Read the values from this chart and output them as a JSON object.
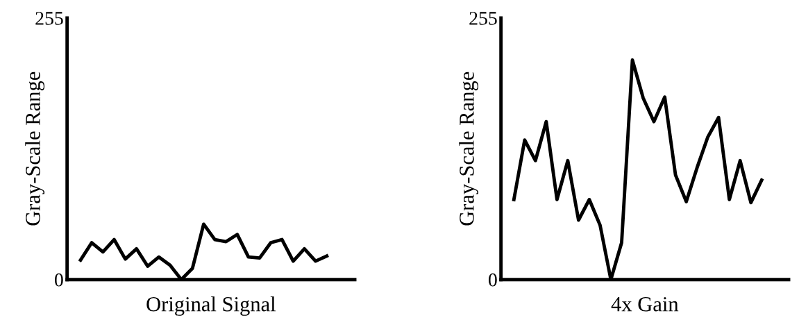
{
  "chart_data": [
    {
      "type": "line",
      "xlabel": "Original Signal",
      "ylabel": "Gray-Scale Range",
      "categories": [
        null,
        null,
        null,
        null,
        null,
        null,
        null,
        null,
        null,
        null,
        null,
        null,
        null,
        null,
        null,
        null,
        null,
        null,
        null,
        null,
        null,
        null,
        null
      ],
      "series": [
        {
          "color": "#000000",
          "values": [
            19,
            36,
            27,
            39,
            20,
            30,
            13,
            22,
            14,
            0,
            11,
            54,
            39,
            37,
            44,
            22,
            21,
            36,
            39,
            18,
            30,
            18,
            23
          ]
        }
      ],
      "ylim": [
        0,
        255
      ],
      "yticks": [
        0,
        255
      ],
      "grid": false,
      "marker": "none",
      "line_style": "solid"
    },
    {
      "type": "line",
      "xlabel": "4x Gain",
      "ylabel": "Gray-Scale Range",
      "categories": [
        null,
        null,
        null,
        null,
        null,
        null,
        null,
        null,
        null,
        null,
        null,
        null,
        null,
        null,
        null,
        null,
        null,
        null,
        null,
        null,
        null,
        null,
        null,
        null
      ],
      "series": [
        {
          "color": "#000000",
          "values": [
            78,
            136,
            116,
            154,
            78,
            116,
            58,
            78,
            53,
            0,
            36,
            214,
            177,
            154,
            178,
            102,
            76,
            109,
            139,
            158,
            78,
            116,
            75,
            97
          ]
        }
      ],
      "ylim": [
        0,
        255
      ],
      "yticks": [
        0,
        255
      ],
      "grid": false,
      "marker": "none",
      "line_style": "solid"
    }
  ]
}
